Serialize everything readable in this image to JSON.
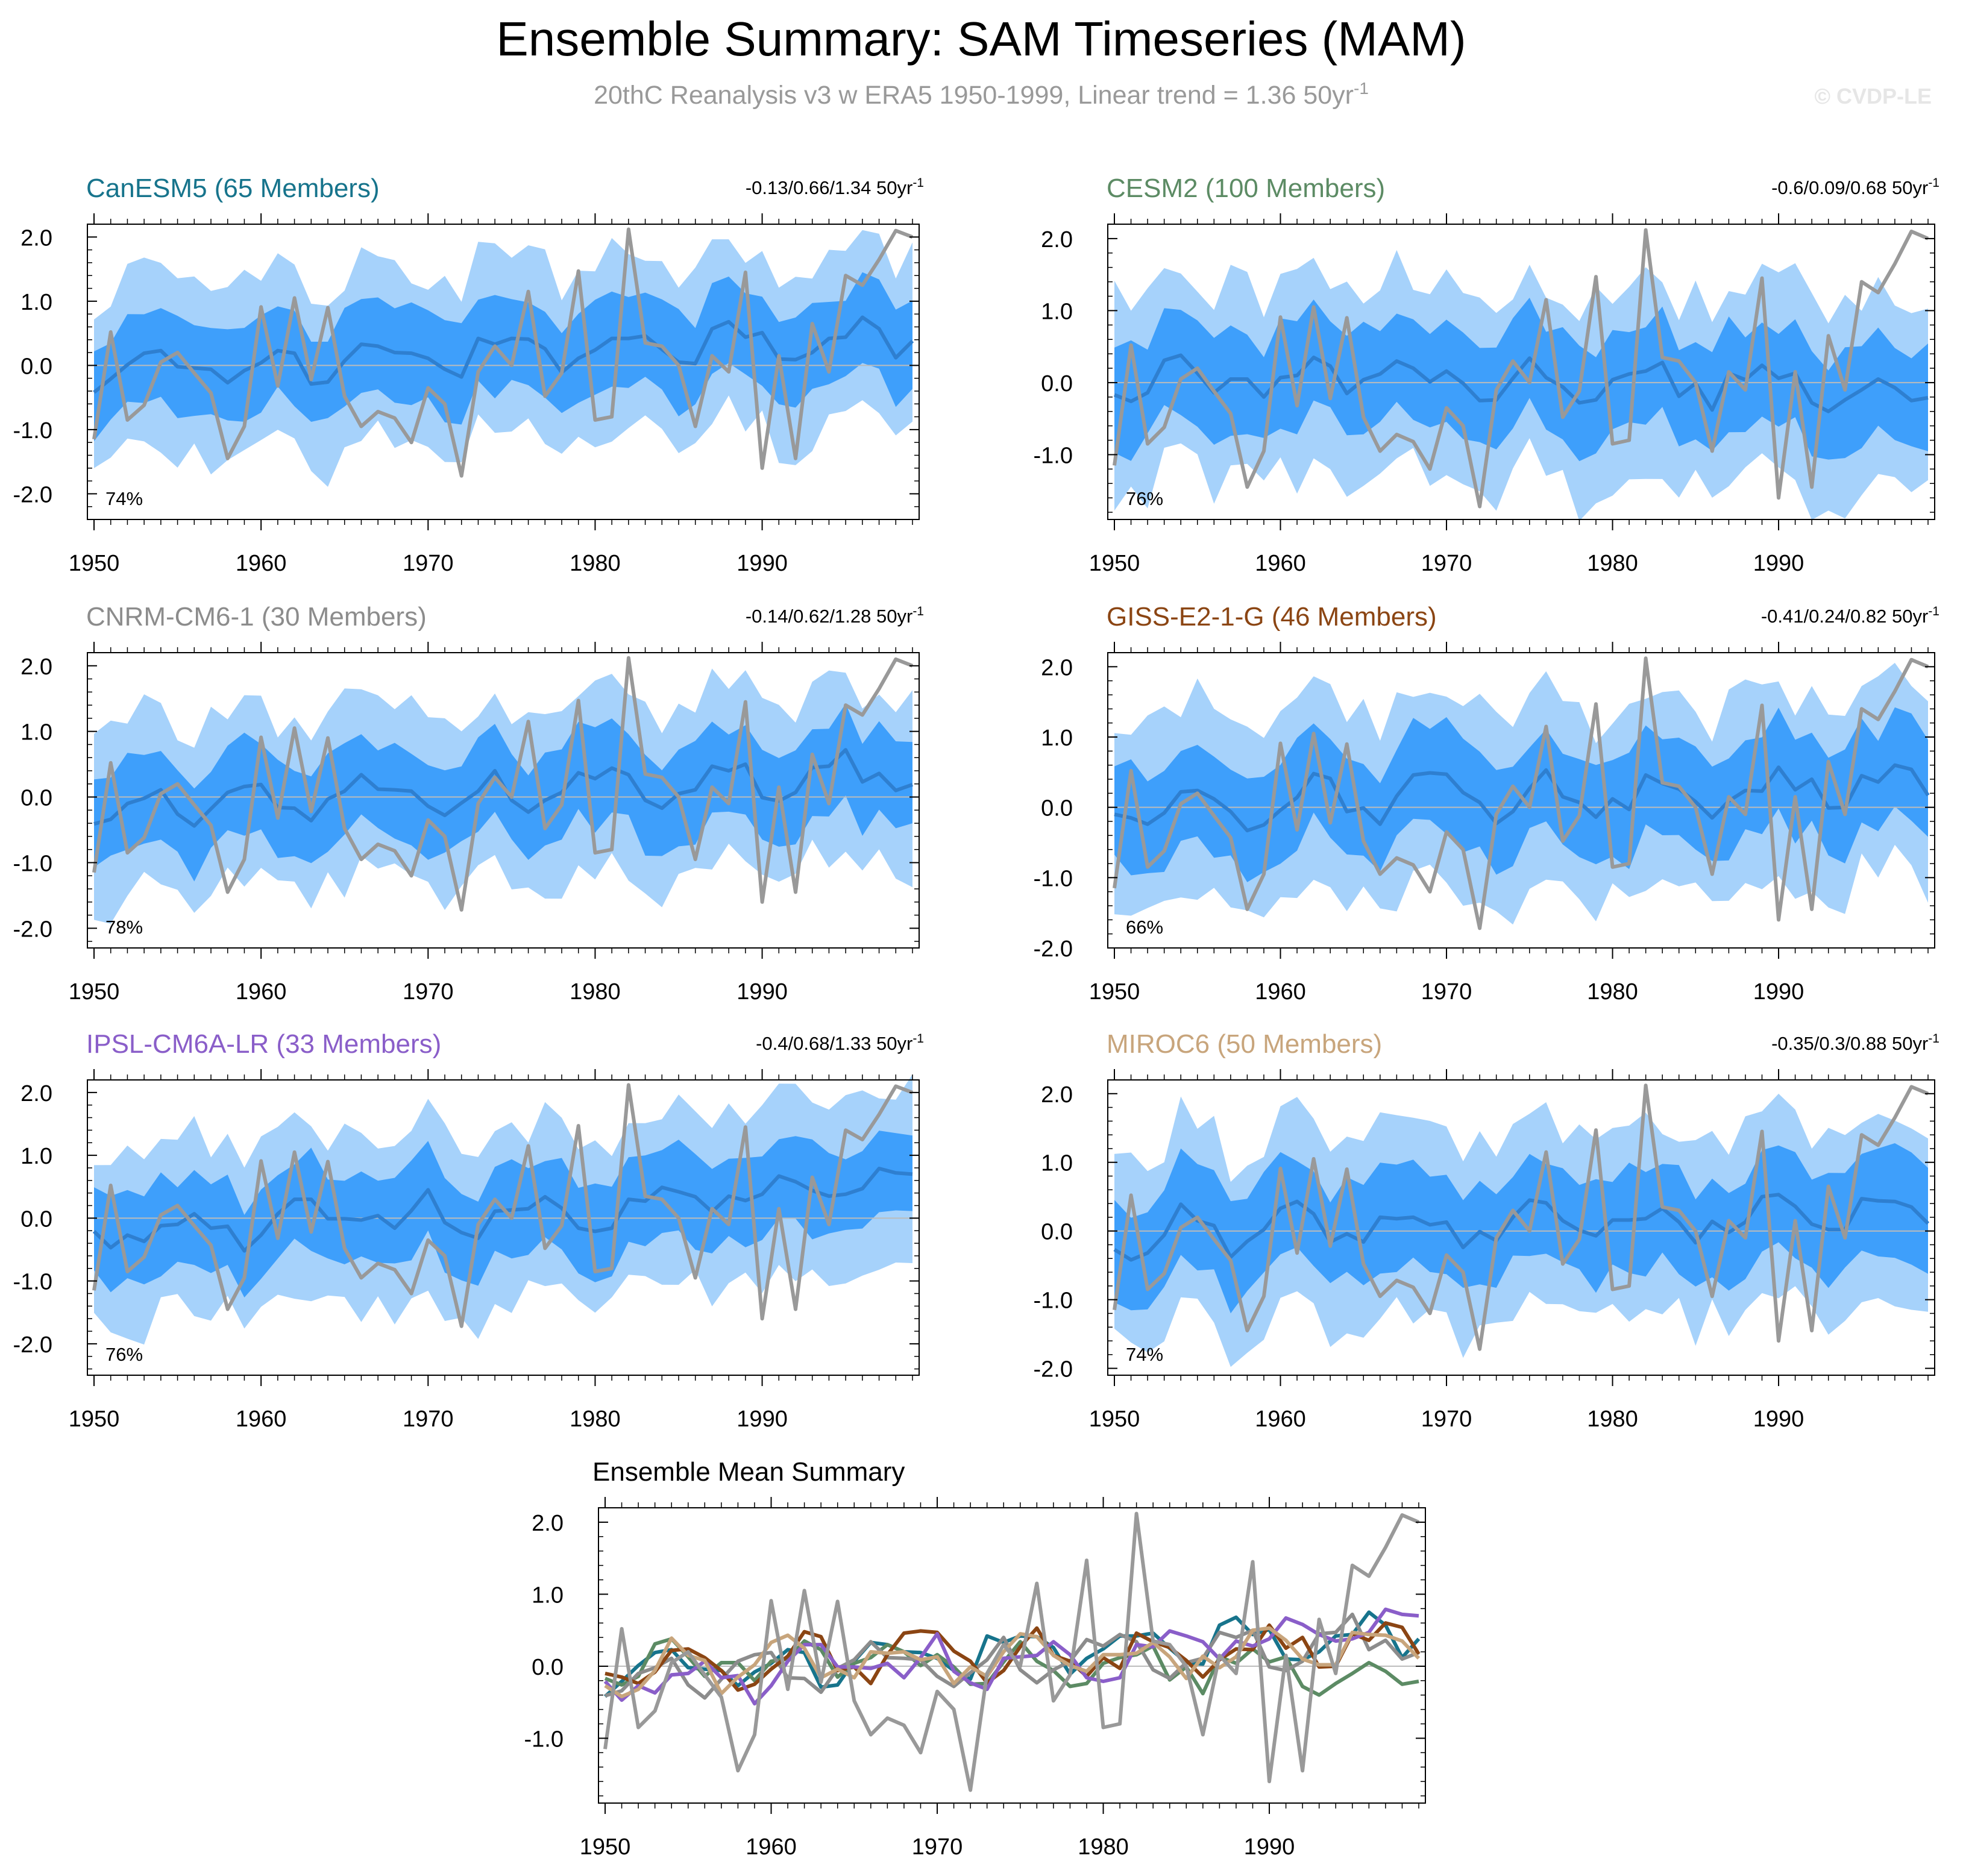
{
  "figure": {
    "title": "Ensemble Summary: SAM Timeseries (MAM)",
    "subtitle": "20thC Reanalysis v3 w ERA5 1950-1999, Linear trend = 1.36 50yr",
    "subtitle_exp": "-1",
    "watermark": "© CVDP-LE",
    "colors": {
      "band_outer": "#a6d2fb",
      "band_inner": "#3e9ffb",
      "ens_mean": "#2e7fd0",
      "obs": "#999999",
      "zero_line": "#bbbbbb"
    }
  },
  "chart_data": [
    {
      "type": "line",
      "model": "CanESM5",
      "title": "CanESM5 (65 Members)",
      "title_color": "#17748c",
      "trend": "-0.13/0.66/1.34 50yr",
      "trend_exp": "-1",
      "pct": "74%",
      "seed": 11,
      "offset": [
        -0.1,
        0.45
      ],
      "ylim": [
        -2.4,
        2.2
      ],
      "yticks": [
        2.0,
        1.0,
        0.0,
        -1.0,
        -2.0
      ],
      "xlabel": "",
      "ylabel": ""
    },
    {
      "type": "line",
      "model": "CESM2",
      "title": "CESM2 (100 Members)",
      "title_color": "#5c8b64",
      "trend": "-0.6/0.09/0.68 50yr",
      "trend_exp": "-1",
      "pct": "76%",
      "seed": 23,
      "offset": [
        0.1,
        -0.05
      ],
      "ylim": [
        -1.9,
        2.2
      ],
      "yticks": [
        2.0,
        1.0,
        0.0,
        -1.0
      ],
      "xlabel": "",
      "ylabel": ""
    },
    {
      "type": "line",
      "model": "CNRM-CM6-1",
      "title": "CNRM-CM6-1 (30 Members)",
      "title_color": "#8c8c8c",
      "trend": "-0.14/0.62/1.28 50yr",
      "trend_exp": "-1",
      "pct": "78%",
      "seed": 37,
      "offset": [
        -0.2,
        0.4
      ],
      "ylim": [
        -2.3,
        2.2
      ],
      "yticks": [
        2.0,
        1.0,
        0.0,
        -1.0,
        -2.0
      ],
      "xlabel": "",
      "ylabel": ""
    },
    {
      "type": "line",
      "model": "GISS-E2-1-G",
      "title": "GISS-E2-1-G (46 Members)",
      "title_color": "#8b4513",
      "trend": "-0.41/0.24/0.82 50yr",
      "trend_exp": "-1",
      "pct": "66%",
      "seed": 41,
      "offset": [
        0.0,
        0.35
      ],
      "ylim": [
        -2.0,
        2.2
      ],
      "yticks": [
        2.0,
        1.0,
        0.0,
        -1.0,
        -2.0
      ],
      "xlabel": "",
      "ylabel": ""
    },
    {
      "type": "line",
      "model": "IPSL-CM6A-LR",
      "title": "IPSL-CM6A-LR (33 Members)",
      "title_color": "#8a5ec9",
      "trend": "-0.4/0.68/1.33 50yr",
      "trend_exp": "-1",
      "pct": "76%",
      "seed": 53,
      "offset": [
        -0.25,
        0.45
      ],
      "ylim": [
        -2.5,
        2.2
      ],
      "yticks": [
        2.0,
        1.0,
        0.0,
        -1.0,
        -2.0
      ],
      "xlabel": "",
      "ylabel": ""
    },
    {
      "type": "line",
      "model": "MIROC6",
      "title": "MIROC6 (50 Members)",
      "title_color": "#c8a57c",
      "trend": "-0.35/0.3/0.88 50yr",
      "trend_exp": "-1",
      "pct": "74%",
      "seed": 67,
      "offset": [
        -0.05,
        0.25
      ],
      "ylim": [
        -2.1,
        2.2
      ],
      "yticks": [
        2.0,
        1.0,
        0.0,
        -1.0,
        -2.0
      ],
      "xlabel": "",
      "ylabel": ""
    },
    {
      "type": "line",
      "model": "Summary",
      "title": "Ensemble Mean Summary",
      "title_color": "#000000",
      "ylim": [
        -1.9,
        2.2
      ],
      "yticks": [
        2.0,
        1.0,
        0.0,
        -1.0
      ],
      "xlabel": "",
      "ylabel": "",
      "series_colors": [
        "#17748c",
        "#5c8b64",
        "#8c8c8c",
        "#8b4513",
        "#8a5ec9",
        "#c8a57c"
      ]
    }
  ],
  "axes": {
    "x_start": 1950,
    "x_end": 1999,
    "xticks": [
      1950,
      1960,
      1970,
      1980,
      1990
    ],
    "observed_1950_1999": [
      -1.15,
      0.52,
      -0.85,
      -0.62,
      0.05,
      0.2,
      -0.12,
      -0.43,
      -1.45,
      -0.95,
      0.91,
      -0.32,
      1.05,
      -0.22,
      0.9,
      -0.48,
      -0.95,
      -0.72,
      -0.82,
      -1.2,
      -0.35,
      -0.6,
      -1.72,
      -0.1,
      0.3,
      0.0,
      1.15,
      -0.48,
      -0.12,
      1.47,
      -0.85,
      -0.8,
      2.12,
      0.35,
      0.3,
      0.0,
      -0.95,
      0.15,
      -0.1,
      1.45,
      -1.6,
      0.15,
      -1.45,
      0.65,
      -0.1,
      1.4,
      1.25,
      1.65,
      2.1,
      2.0
    ]
  }
}
